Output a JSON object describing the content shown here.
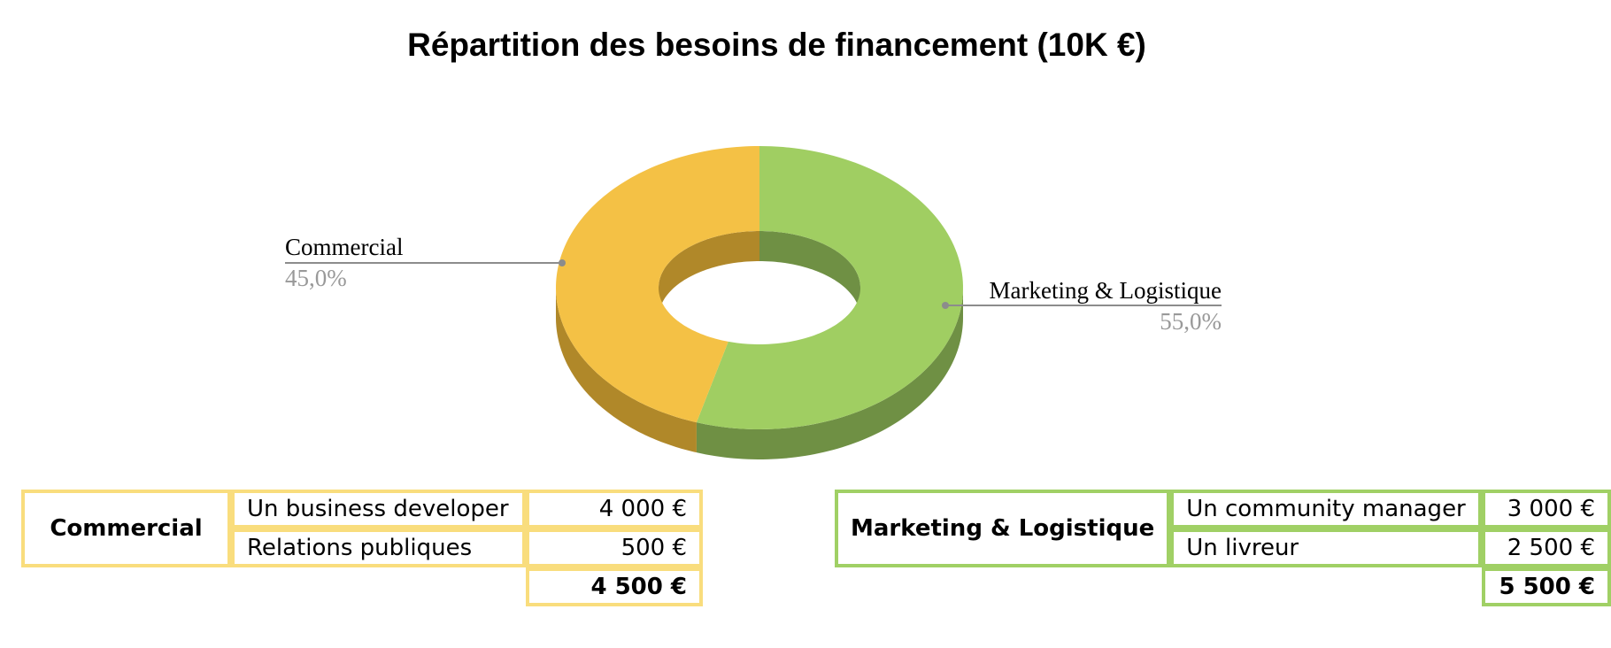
{
  "chart_data": {
    "type": "pie",
    "subtype": "3d-donut",
    "title": "Répartition des besoins de financement (10K €)",
    "slices": [
      {
        "label": "Marketing & Logistique",
        "value": 55.0,
        "percent_label": "55,0%",
        "color": "#a0ce62",
        "side_color": "#6f9044"
      },
      {
        "label": "Commercial",
        "value": 45.0,
        "percent_label": "45,0%",
        "color": "#f4c145",
        "side_color": "#b08829"
      }
    ]
  },
  "tables": {
    "commercial": {
      "category": "Commercial",
      "color": "#f9dd7d",
      "rows": [
        {
          "item": "Un business developer",
          "amount": "4 000 €"
        },
        {
          "item": "Relations publiques",
          "amount": "500 €"
        }
      ],
      "total": "4 500 €"
    },
    "marketing": {
      "category": "Marketing & Logistique",
      "color": "#a0d065",
      "rows": [
        {
          "item": "Un community manager",
          "amount": "3 000 €"
        },
        {
          "item": "Un livreur",
          "amount": "2 500 €"
        }
      ],
      "total": "5 500 €"
    }
  }
}
